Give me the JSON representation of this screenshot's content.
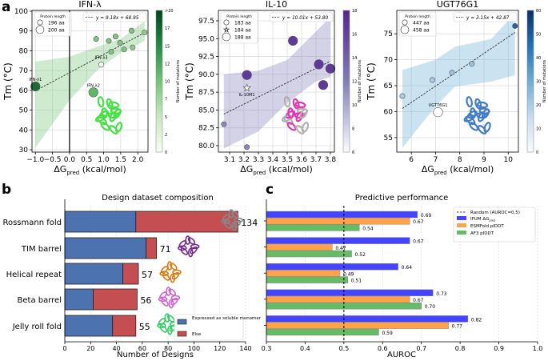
{
  "panel_labels": [
    "a",
    "b",
    "c"
  ],
  "colorbar_label": "Number of mutations",
  "chart_data": [
    {
      "type": "scatter",
      "title": "IFN-λ",
      "xlabel": "ΔG",
      "xlabel_sub": "pred",
      "xlabel_unit": " (kcal/mol)",
      "ylabel": "Tm (°C)",
      "xlim": [
        -1.1,
        2.3
      ],
      "ylim": [
        28.8,
        100.4
      ],
      "xticks": [
        -1.0,
        -0.5,
        0.0,
        0.5,
        1.0,
        1.5,
        2.0
      ],
      "xtick_labels": [
        "−1.0",
        "−0.5",
        "0.0",
        "0.5",
        "1.0",
        "1.5",
        "2.0"
      ],
      "yticks": [
        30,
        40,
        50,
        60,
        70,
        80,
        90,
        100
      ],
      "vline_x": 0,
      "grid": true,
      "fit": {
        "label": "y = 9.18x + 68.95",
        "slope": 9.18,
        "intercept": 68.95,
        "x_range": [
          -1.0,
          2.2
        ]
      },
      "ci_band": {
        "x": [
          -1.0,
          0.0,
          0.8,
          1.5,
          2.2
        ],
        "upper": [
          74.5,
          77,
          82,
          86,
          95
        ],
        "lower": [
          31,
          55,
          70,
          79,
          85
        ]
      },
      "size_legend": {
        "title": "Protein length",
        "entries": [
          {
            "label": "196 aa",
            "marker": "circle-small"
          },
          {
            "label": "200 aa",
            "marker": "circle-large"
          }
        ]
      },
      "colorbar": {
        "ticks": [
          "0",
          "2",
          "5",
          "7",
          "10",
          "12",
          "15",
          "17",
          ">20"
        ],
        "colors": [
          "#f7fcf5",
          "#c7e9c0",
          "#74c476",
          "#238b45",
          "#00441b"
        ]
      },
      "structure_color": "#33dd33",
      "points": [
        {
          "x": -1.0,
          "y": 62.0,
          "length": 200,
          "color": "#1e6b3a",
          "label": "IFN-λ1"
        },
        {
          "x": 0.7,
          "y": 59.0,
          "length": 200,
          "color": "#5fb865",
          "label": "IFN-λ2"
        },
        {
          "x": 0.93,
          "y": 73.0,
          "length": 196,
          "color": "#ffffff",
          "label": "IFN-λ3"
        },
        {
          "x": 0.78,
          "y": 86.0,
          "length": 196,
          "color": "#7fc47f"
        },
        {
          "x": 1.15,
          "y": 85.0,
          "length": 196,
          "color": "#7fc47f"
        },
        {
          "x": 1.22,
          "y": 79.5,
          "length": 196,
          "color": "#7fc47f"
        },
        {
          "x": 1.35,
          "y": 87.2,
          "length": 196,
          "color": "#7fc47f"
        },
        {
          "x": 1.48,
          "y": 84.0,
          "length": 196,
          "color": "#7fc47f"
        },
        {
          "x": 1.6,
          "y": 80.7,
          "length": 196,
          "color": "#7fc47f"
        },
        {
          "x": 1.82,
          "y": 90.2,
          "length": 196,
          "color": "#7fc47f"
        },
        {
          "x": 1.85,
          "y": 81.7,
          "length": 196,
          "color": "#8fcc8a"
        },
        {
          "x": 2.2,
          "y": 89.2,
          "length": 196,
          "color": "#8fcc8a"
        }
      ]
    },
    {
      "type": "scatter",
      "title": "IL-10",
      "xlabel": "ΔG",
      "xlabel_sub": "pred",
      "xlabel_unit": " (kcal/mol)",
      "ylabel": "Tm (°C)",
      "xlim": [
        3.022,
        3.828
      ],
      "ylim": [
        79.1,
        98.96
      ],
      "xticks": [
        3.1,
        3.2,
        3.3,
        3.4,
        3.5,
        3.6,
        3.7,
        3.8
      ],
      "xtick_labels": [
        "3.1",
        "3.2",
        "3.3",
        "3.4",
        "3.5",
        "3.6",
        "3.7",
        "3.8"
      ],
      "yticks": [
        80.0,
        82.5,
        85.0,
        87.5,
        90.0,
        92.5,
        95.0,
        97.5
      ],
      "ytick_labels": [
        "80.0",
        "82.5",
        "85.0",
        "87.5",
        "90.0",
        "92.5",
        "95.0",
        "97.5"
      ],
      "grid": true,
      "fit": {
        "label": "y = 10.01x + 53.80",
        "slope": 10.01,
        "intercept": 53.8,
        "x_range": [
          3.06,
          3.8
        ]
      },
      "ci_band": {
        "x": [
          3.06,
          3.3,
          3.5,
          3.7,
          3.8
        ],
        "upper": [
          90,
          90.5,
          92,
          96,
          98
        ],
        "lower": [
          79.6,
          82,
          86,
          89,
          89.6
        ]
      },
      "size_legend": {
        "title": "Protein length",
        "entries": [
          {
            "label": "183 aa",
            "marker": "circle-small"
          },
          {
            "label": "184 aa",
            "marker": "star"
          },
          {
            "label": "188 aa",
            "marker": "circle-large"
          }
        ]
      },
      "colorbar": {
        "ticks": [
          "6",
          "8",
          "10",
          "12",
          "14",
          "16",
          "18"
        ],
        "colors": [
          "#fcfbfd",
          "#bcbddc",
          "#807dba",
          "#6a51a3",
          "#54278f"
        ]
      },
      "structure_color": "#dd22aa",
      "points": [
        {
          "x": 3.06,
          "y": 83.0,
          "length": 183,
          "color": "#8a86c0"
        },
        {
          "x": 3.22,
          "y": 79.8,
          "length": 183,
          "color": "#8a86c0"
        },
        {
          "x": 3.22,
          "y": 89.9,
          "length": 188,
          "color": "#5e3a9a"
        },
        {
          "x": 3.22,
          "y": 88.1,
          "length": 184,
          "color": "#ffffff",
          "label": "IL-10M1"
        },
        {
          "x": 3.54,
          "y": 94.7,
          "length": 188,
          "color": "#5e3a9a"
        },
        {
          "x": 3.72,
          "y": 91.4,
          "length": 188,
          "color": "#5e3a9a"
        },
        {
          "x": 3.75,
          "y": 88.5,
          "length": 188,
          "color": "#5e3a9a"
        },
        {
          "x": 3.8,
          "y": 90.8,
          "length": 188,
          "color": "#5e3a9a"
        }
      ]
    },
    {
      "type": "scatter",
      "title": "UGT76G1",
      "xlabel": "ΔG",
      "xlabel_sub": "pred",
      "xlabel_unit": " (kcal/mol)",
      "ylabel": "Tm (°C)",
      "xlim": [
        5.4,
        10.42
      ],
      "ylim": [
        52.2,
        79.5
      ],
      "xticks": [
        6,
        7,
        8,
        9,
        10
      ],
      "xtick_labels": [
        "6",
        "7",
        "8",
        "9",
        "10"
      ],
      "yticks": [
        55,
        60,
        65,
        70,
        75
      ],
      "grid": true,
      "fit": {
        "label": "y = 3.15x + 42.87",
        "slope": 3.15,
        "intercept": 42.87,
        "x_range": [
          5.63,
          10.28
        ]
      },
      "ci_band": {
        "x": [
          5.63,
          7.0,
          7.8,
          9.3,
          10.28
        ],
        "upper": [
          68,
          70,
          72.5,
          74,
          79
        ],
        "lower": [
          53,
          61,
          64.8,
          65.8,
          67
        ]
      },
      "size_legend": {
        "title": "Protein length",
        "entries": [
          {
            "label": "447 aa",
            "marker": "circle-small"
          },
          {
            "label": "458 aa",
            "marker": "circle-large"
          }
        ]
      },
      "colorbar": {
        "ticks": [
          "0",
          "10",
          "20",
          "30",
          "40",
          "50",
          "60"
        ],
        "colors": [
          "#f7fbff",
          "#c6dbef",
          "#6baed6",
          "#2171b5",
          "#08306b"
        ]
      },
      "structure_color": "#2f6fbf",
      "points": [
        {
          "x": 5.63,
          "y": 63.0,
          "length": 447,
          "color": "#a9cbe6"
        },
        {
          "x": 6.87,
          "y": 66.1,
          "length": 447,
          "color": "#a9cbe6"
        },
        {
          "x": 7.68,
          "y": 67.5,
          "length": 447,
          "color": "#9cc3e2"
        },
        {
          "x": 8.5,
          "y": 69.2,
          "length": 447,
          "color": "#9cc3e2"
        },
        {
          "x": 10.28,
          "y": 76.5,
          "length": 447,
          "color": "#2a5f9e"
        },
        {
          "x": 7.1,
          "y": 59.9,
          "length": 458,
          "color": "#ffffff",
          "label": "UGT76G1"
        }
      ]
    },
    {
      "type": "bar",
      "orientation": "horizontal-stacked",
      "title": "Design dataset composition",
      "xlabel": "Number of Designs",
      "xlim": [
        0,
        140
      ],
      "xticks": [
        "0",
        "20",
        "40",
        "60",
        "80",
        "100",
        "120",
        "140"
      ],
      "categories": [
        "Rossmann fold",
        "TIM barrel",
        "Helical repeat",
        "Beta barrel",
        "Jelly roll fold"
      ],
      "totals": [
        "134",
        "71",
        "57",
        "56",
        "55"
      ],
      "series": [
        {
          "name": "Expressed as soluble monomer",
          "color": "#4c72b0",
          "values": [
            55,
            63,
            45,
            22,
            37
          ]
        },
        {
          "name": "Else",
          "color": "#c44e52",
          "values": [
            79,
            8,
            12,
            34,
            18
          ]
        }
      ],
      "legend_position": "bottom-right",
      "structure_colors": [
        "#888888",
        "#7a2a8a",
        "#d97a10",
        "#cc66cc",
        "#33cc66"
      ],
      "grid": true
    },
    {
      "type": "bar",
      "orientation": "horizontal-grouped",
      "title": "Predictive performance",
      "xlabel": "AUROC",
      "xlim": [
        0.3,
        1.0
      ],
      "xticks": [
        "0.3",
        "0.4",
        "0.5",
        "0.6",
        "0.7",
        "0.8",
        "0.9",
        "1.0"
      ],
      "categories": [
        "Rossmann fold",
        "TIM barrel",
        "Helical repeat",
        "Beta barrel",
        "Jelly roll fold"
      ],
      "reference_line": {
        "x": 0.5,
        "label": "Random (AUROC=0.5)"
      },
      "series": [
        {
          "name": "IFUM ΔG",
          "name_sub": "pred",
          "color": "#4444ff",
          "values": [
            0.69,
            0.67,
            0.64,
            0.73,
            0.82
          ],
          "labels": [
            "0.69",
            "0.67",
            "0.64",
            "0.73",
            "0.82"
          ]
        },
        {
          "name": "ESMFold pIDDT",
          "color": "#ffa24a",
          "values": [
            0.67,
            0.47,
            0.49,
            0.67,
            0.77
          ],
          "labels": [
            "0.67",
            "0.47",
            "0.49",
            "0.67",
            "0.77"
          ]
        },
        {
          "name": "AF3 pIDDT",
          "color": "#66bb66",
          "values": [
            0.54,
            0.52,
            0.51,
            0.7,
            0.59
          ],
          "labels": [
            "0.54",
            "0.52",
            "0.51",
            "0.70",
            "0.59"
          ]
        }
      ],
      "legend_position": "top-right",
      "grid": true
    }
  ]
}
